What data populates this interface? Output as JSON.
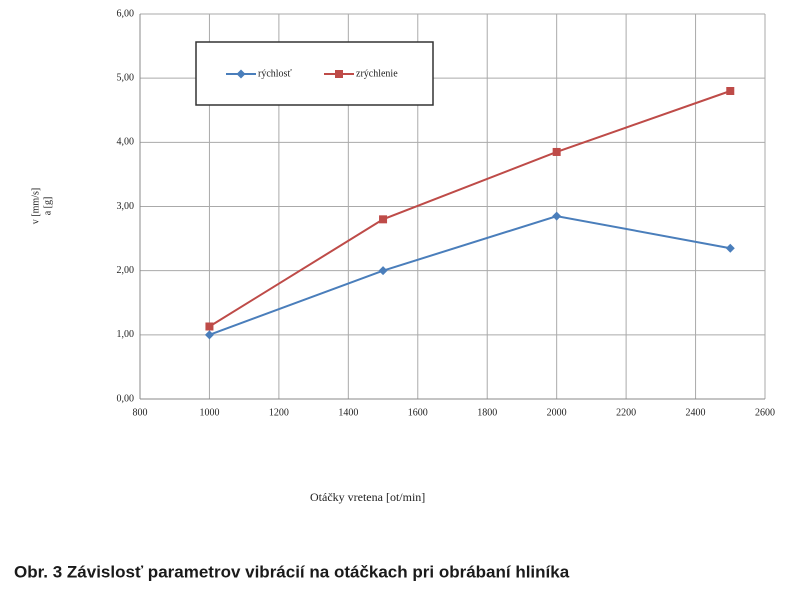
{
  "chart_data": {
    "type": "line",
    "xlabel": "Otáčky vretena [ot/min]",
    "ylabel": [
      "v [mm/s]",
      "a [g]"
    ],
    "caption": "Obr. 3 Závislosť parametrov vibrácií na otáčkach pri obrábaní hliníka",
    "x": [
      1000,
      1500,
      2000,
      2500
    ],
    "series": [
      {
        "name": "rýchlosť",
        "color": "#4a7ebb",
        "marker": "diamond",
        "values": [
          1.0,
          2.0,
          2.85,
          2.35
        ]
      },
      {
        "name": "zrýchlenie",
        "color": "#be4b48",
        "marker": "square",
        "values": [
          1.13,
          2.8,
          3.85,
          4.8
        ]
      }
    ],
    "xlim": [
      800,
      2600
    ],
    "xticks": [
      800,
      1000,
      1200,
      1400,
      1600,
      1800,
      2000,
      2200,
      2400,
      2600
    ],
    "ylim": [
      0,
      6
    ],
    "yticks": [
      {
        "value": 0,
        "label": "0,00"
      },
      {
        "value": 1,
        "label": "1,00"
      },
      {
        "value": 2,
        "label": "2,00"
      },
      {
        "value": 3,
        "label": "3,00"
      },
      {
        "value": 4,
        "label": "4,00"
      },
      {
        "value": 5,
        "label": "5,00"
      },
      {
        "value": 6,
        "label": "6,00"
      }
    ],
    "grid": true,
    "legend": "top-left"
  }
}
